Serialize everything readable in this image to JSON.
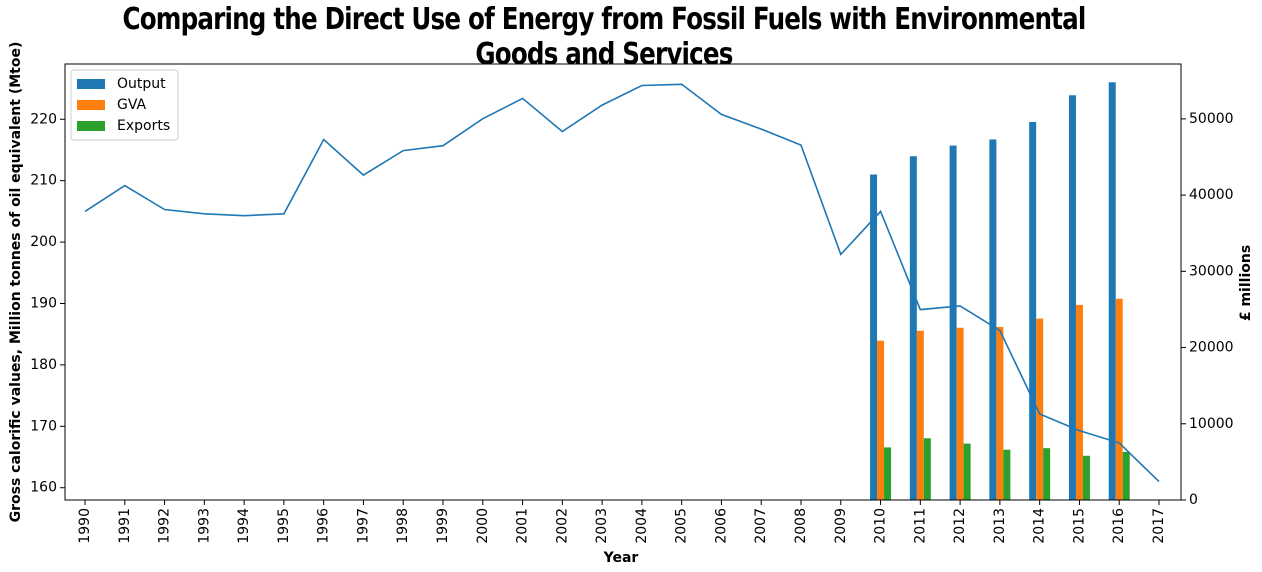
{
  "chart_data": {
    "type": "bar+line",
    "title": "Comparing the Direct Use of Energy from Fossil Fuels with Environmental Goods and Services",
    "xlabel": "Year",
    "ylabel_left": "Gross calorific values, Million tonnes of oil equivalent (Mtoe)",
    "ylabel_right": "£ millions",
    "categories": [
      "1990",
      "1991",
      "1992",
      "1993",
      "1994",
      "1995",
      "1996",
      "1997",
      "1998",
      "1999",
      "2000",
      "2001",
      "2002",
      "2003",
      "2004",
      "2005",
      "2006",
      "2007",
      "2008",
      "2009",
      "2010",
      "2011",
      "2012",
      "2013",
      "2014",
      "2015",
      "2016",
      "2017"
    ],
    "ylim_left": [
      158,
      229
    ],
    "ylim_right": [
      0,
      57200
    ],
    "yticks_left": [
      160,
      170,
      180,
      190,
      200,
      210,
      220
    ],
    "yticks_right": [
      0,
      10000,
      20000,
      30000,
      40000,
      50000
    ],
    "legend_position": "top-left",
    "line": {
      "axis": "left",
      "color": "#1f77b4",
      "values": [
        205,
        209.2,
        205.3,
        204.6,
        204.3,
        204.6,
        216.7,
        210.9,
        214.9,
        215.7,
        220.1,
        223.4,
        218.0,
        222.3,
        225.5,
        225.7,
        220.8,
        218.4,
        215.8,
        198.0,
        205.0,
        189.0,
        189.6,
        185.6,
        172.0,
        169.3,
        167.3,
        161.0
      ]
    },
    "series": [
      {
        "name": "Output",
        "color": "#1f77b4",
        "axis": "right",
        "values": [
          null,
          null,
          null,
          null,
          null,
          null,
          null,
          null,
          null,
          null,
          null,
          null,
          null,
          null,
          null,
          null,
          null,
          null,
          null,
          null,
          42700,
          45100,
          46500,
          47300,
          49600,
          53100,
          54800,
          null
        ]
      },
      {
        "name": "GVA",
        "color": "#ff7f0e",
        "axis": "right",
        "values": [
          null,
          null,
          null,
          null,
          null,
          null,
          null,
          null,
          null,
          null,
          null,
          null,
          null,
          null,
          null,
          null,
          null,
          null,
          null,
          null,
          20900,
          22200,
          22600,
          22700,
          23800,
          25600,
          26400,
          null
        ]
      },
      {
        "name": "Exports",
        "color": "#2ca02c",
        "axis": "right",
        "values": [
          null,
          null,
          null,
          null,
          null,
          null,
          null,
          null,
          null,
          null,
          null,
          null,
          null,
          null,
          null,
          null,
          null,
          null,
          null,
          null,
          6900,
          8100,
          7400,
          6600,
          6800,
          5800,
          6300,
          null
        ]
      }
    ]
  }
}
